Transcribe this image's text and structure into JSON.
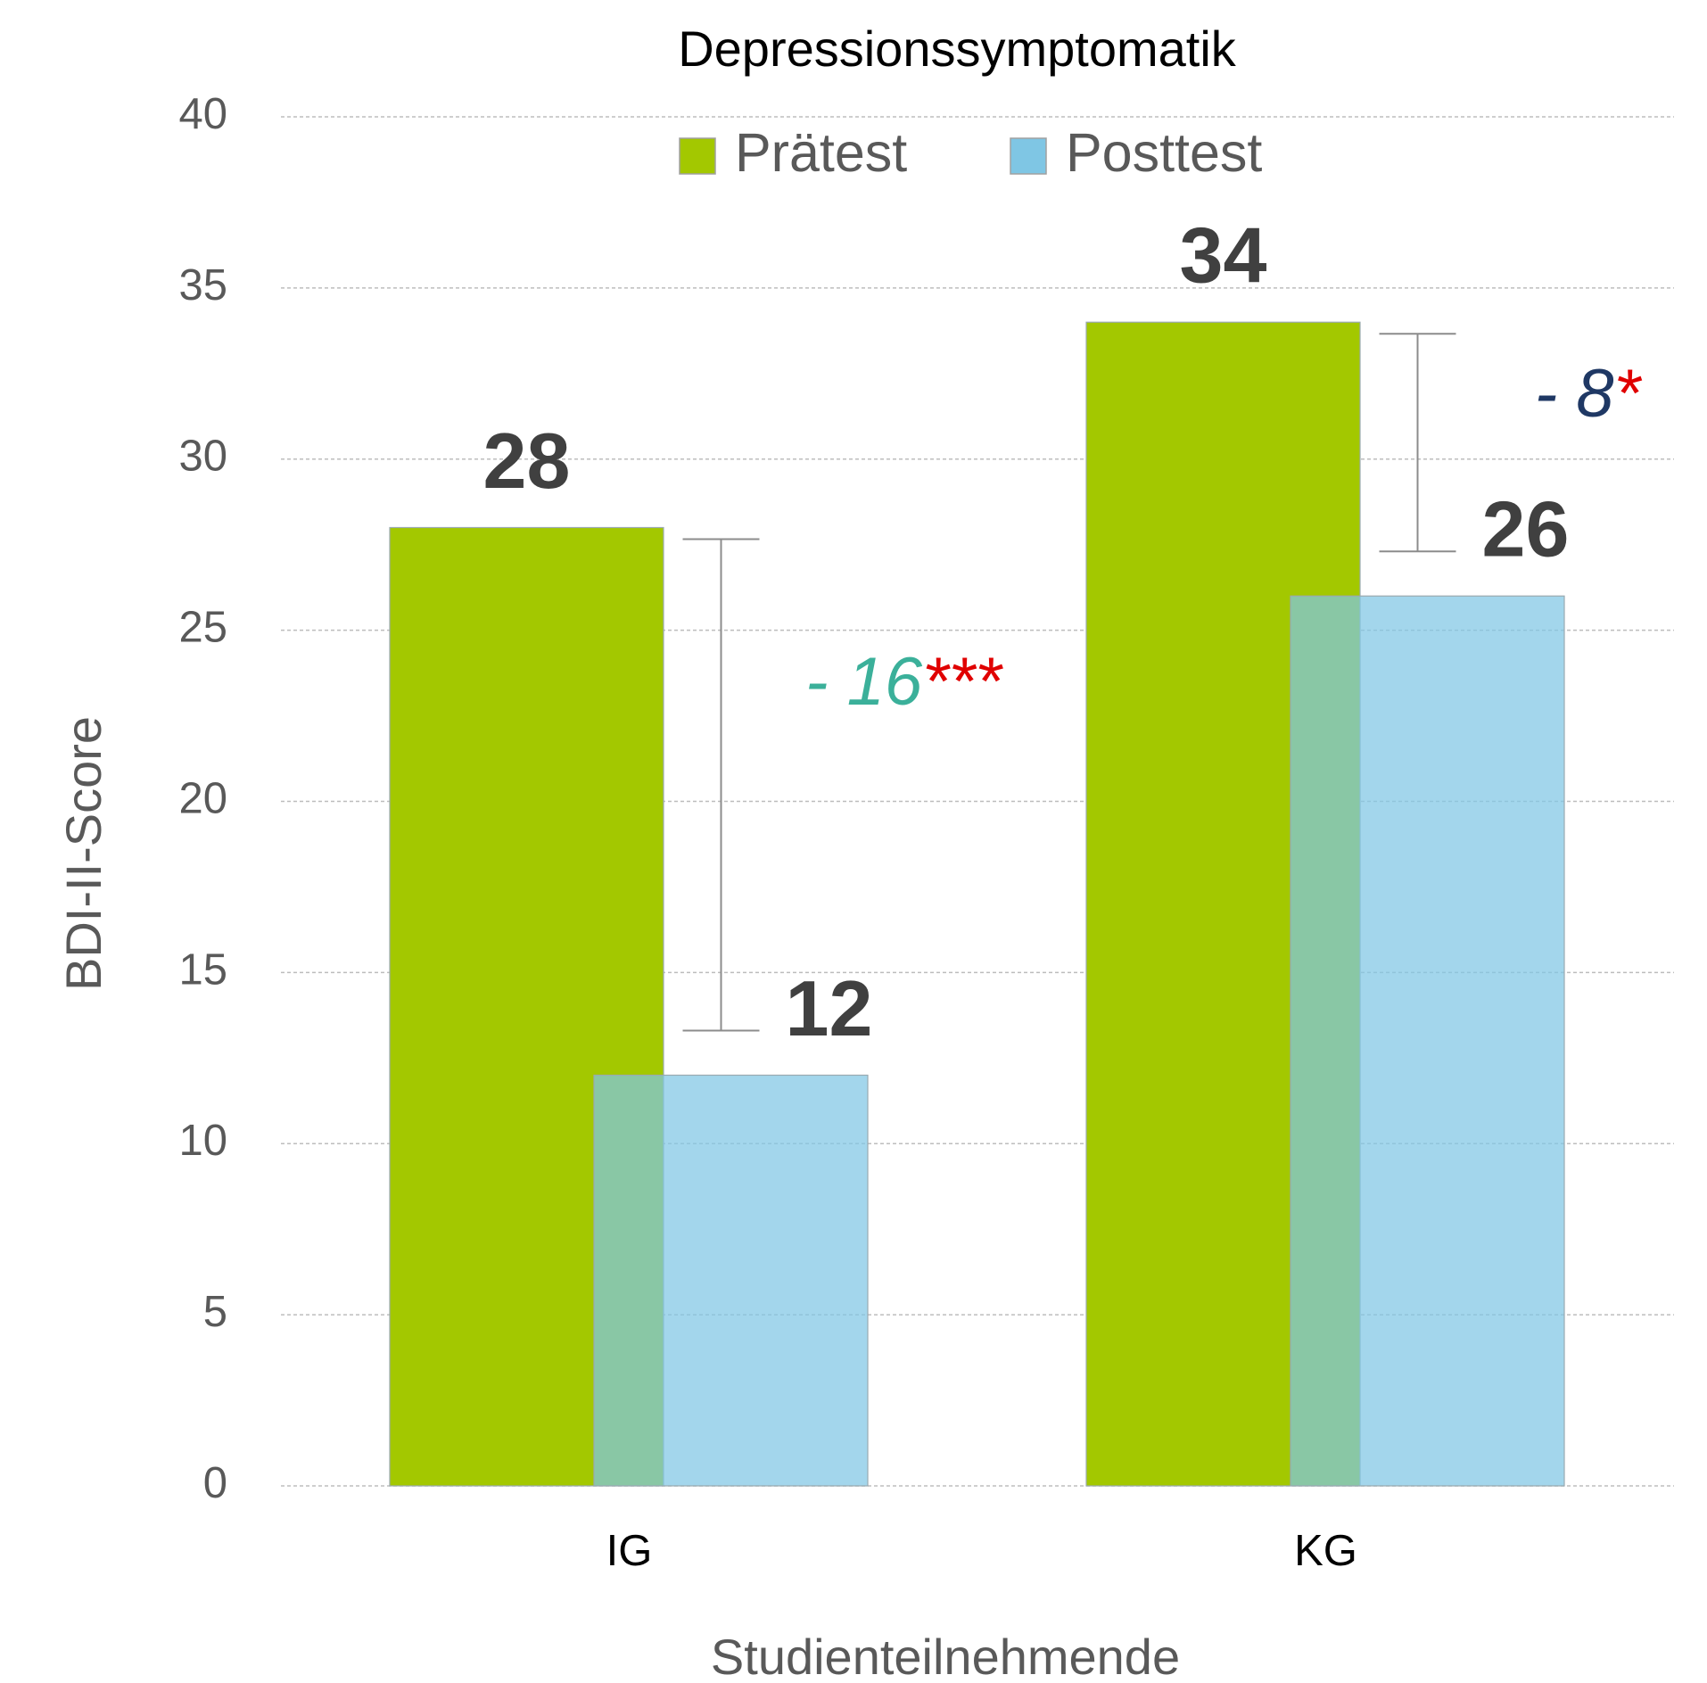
{
  "chart_data": {
    "type": "bar",
    "title": "Depressionssymptomatik",
    "x_label": "Studienteilnehmende",
    "y_label": "BDI-II-Score",
    "categories": [
      "IG",
      "KG"
    ],
    "series": [
      {
        "name": "Prätest",
        "color": "#a3c800",
        "values": [
          28,
          34
        ]
      },
      {
        "name": "Posttest",
        "color": "#7fc6e4",
        "values": [
          12,
          26
        ]
      }
    ],
    "ylim": [
      0,
      40
    ],
    "yticks": [
      0,
      5,
      10,
      15,
      20,
      25,
      30,
      35,
      40
    ],
    "grid": true,
    "annotations": [
      {
        "text": "- 16",
        "stars": "***",
        "color": "#3bb09a"
      },
      {
        "text": "- 8",
        "stars": "*",
        "color": "#1f3864"
      }
    ]
  }
}
